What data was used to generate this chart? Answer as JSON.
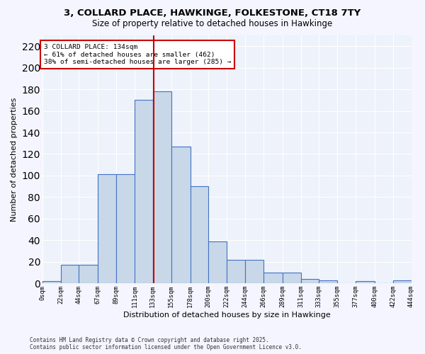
{
  "title1": "3, COLLARD PLACE, HAWKINGE, FOLKESTONE, CT18 7TY",
  "title2": "Size of property relative to detached houses in Hawkinge",
  "xlabel": "Distribution of detached houses by size in Hawkinge",
  "ylabel": "Number of detached properties",
  "bin_edges": [
    0,
    22,
    44,
    67,
    89,
    111,
    133,
    155,
    178,
    200,
    222,
    244,
    266,
    289,
    311,
    333,
    355,
    377,
    400,
    422,
    444
  ],
  "bin_labels": [
    "0sqm",
    "22sqm",
    "44sqm",
    "67sqm",
    "89sqm",
    "111sqm",
    "133sqm",
    "155sqm",
    "178sqm",
    "200sqm",
    "222sqm",
    "244sqm",
    "266sqm",
    "289sqm",
    "311sqm",
    "333sqm",
    "355sqm",
    "377sqm",
    "400sqm",
    "422sqm",
    "444sqm"
  ],
  "bar_heights": [
    2,
    17,
    17,
    101,
    101,
    170,
    178,
    127,
    90,
    39,
    22,
    22,
    10,
    10,
    4,
    3,
    0,
    2,
    0,
    3
  ],
  "bar_color": "#c8d8e8",
  "bar_edge_color": "#4472c4",
  "property_value": 134,
  "vline_color": "#cc0000",
  "annotation_text": "3 COLLARD PLACE: 134sqm\n← 61% of detached houses are smaller (462)\n38% of semi-detached houses are larger (285) →",
  "annotation_box_color": "#ffffff",
  "annotation_box_edge_color": "#cc0000",
  "ylim": [
    0,
    230
  ],
  "yticks": [
    0,
    20,
    40,
    60,
    80,
    100,
    120,
    140,
    160,
    180,
    200,
    220
  ],
  "bg_color": "#eef2fa",
  "grid_color": "#ffffff",
  "footer_text": "Contains HM Land Registry data © Crown copyright and database right 2025.\nContains public sector information licensed under the Open Government Licence v3.0."
}
